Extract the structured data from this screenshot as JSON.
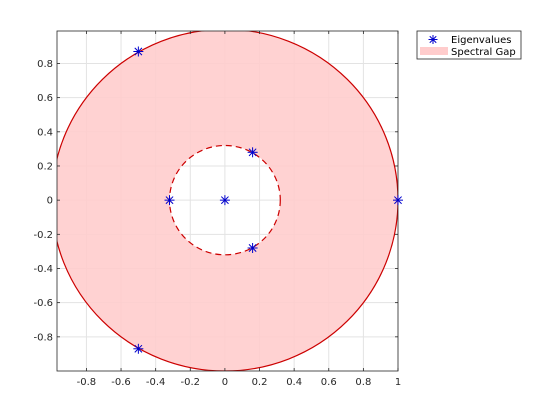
{
  "chart_data": {
    "type": "scatter",
    "title": "",
    "xlabel": "",
    "ylabel": "",
    "xlim": [
      -1,
      1
    ],
    "ylim": [
      -1,
      1
    ],
    "grid": true,
    "legend_placement": "outside-top-right",
    "x_ticks": [
      -0.8,
      -0.6,
      -0.4,
      -0.2,
      0,
      0.2,
      0.4,
      0.6,
      0.8,
      1
    ],
    "y_ticks": [
      -0.8,
      -0.6,
      -0.4,
      -0.2,
      0,
      0.2,
      0.4,
      0.6,
      0.8
    ],
    "series": [
      {
        "name": "Eigenvalues",
        "marker": "asterisk",
        "color": "#0000cc",
        "x": [
          -0.5,
          0.16,
          -0.32,
          0,
          0.16,
          1,
          -0.5
        ],
        "y": [
          0.87,
          0.28,
          0,
          0,
          -0.28,
          0,
          -0.87
        ]
      },
      {
        "name": "Spectral Gap",
        "kind": "annulus",
        "fill_color": "#ffcccc",
        "edge_color": "#cc0000",
        "outer_radius": 1,
        "inner_radius": 0.32
      }
    ]
  }
}
